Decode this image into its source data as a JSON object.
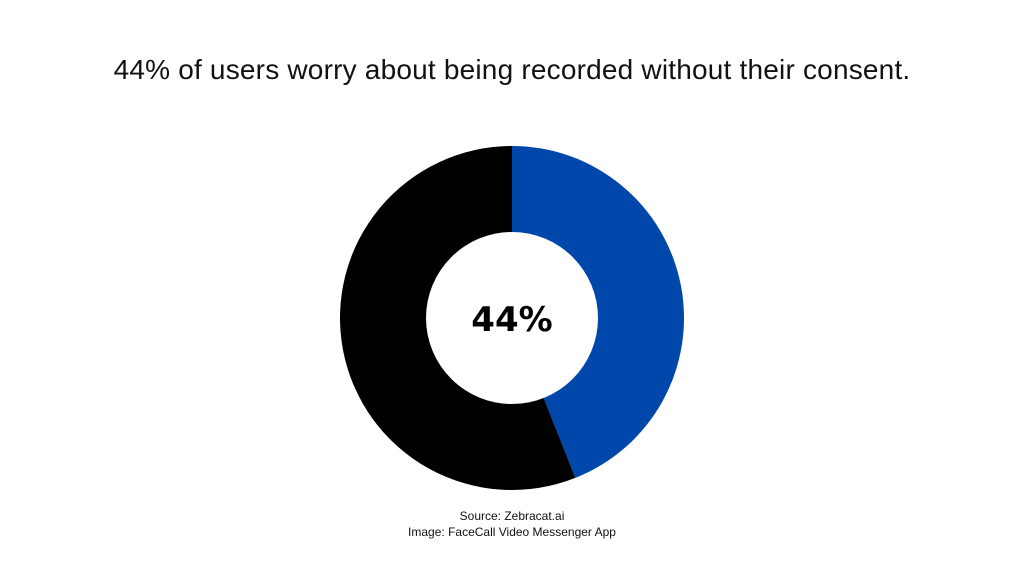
{
  "title": "44% of users worry about being recorded without their consent.",
  "chart_data": {
    "type": "pie",
    "donut": true,
    "center_label": "44%",
    "slices": [
      {
        "label": "",
        "value": 44,
        "color": "#0047AB"
      },
      {
        "label": "",
        "value": 56,
        "color": "#000000"
      }
    ],
    "legend": "none"
  },
  "source": {
    "line1": "Source: Zebracat.ai",
    "line2": "Image: FaceCall Video Messenger App"
  }
}
